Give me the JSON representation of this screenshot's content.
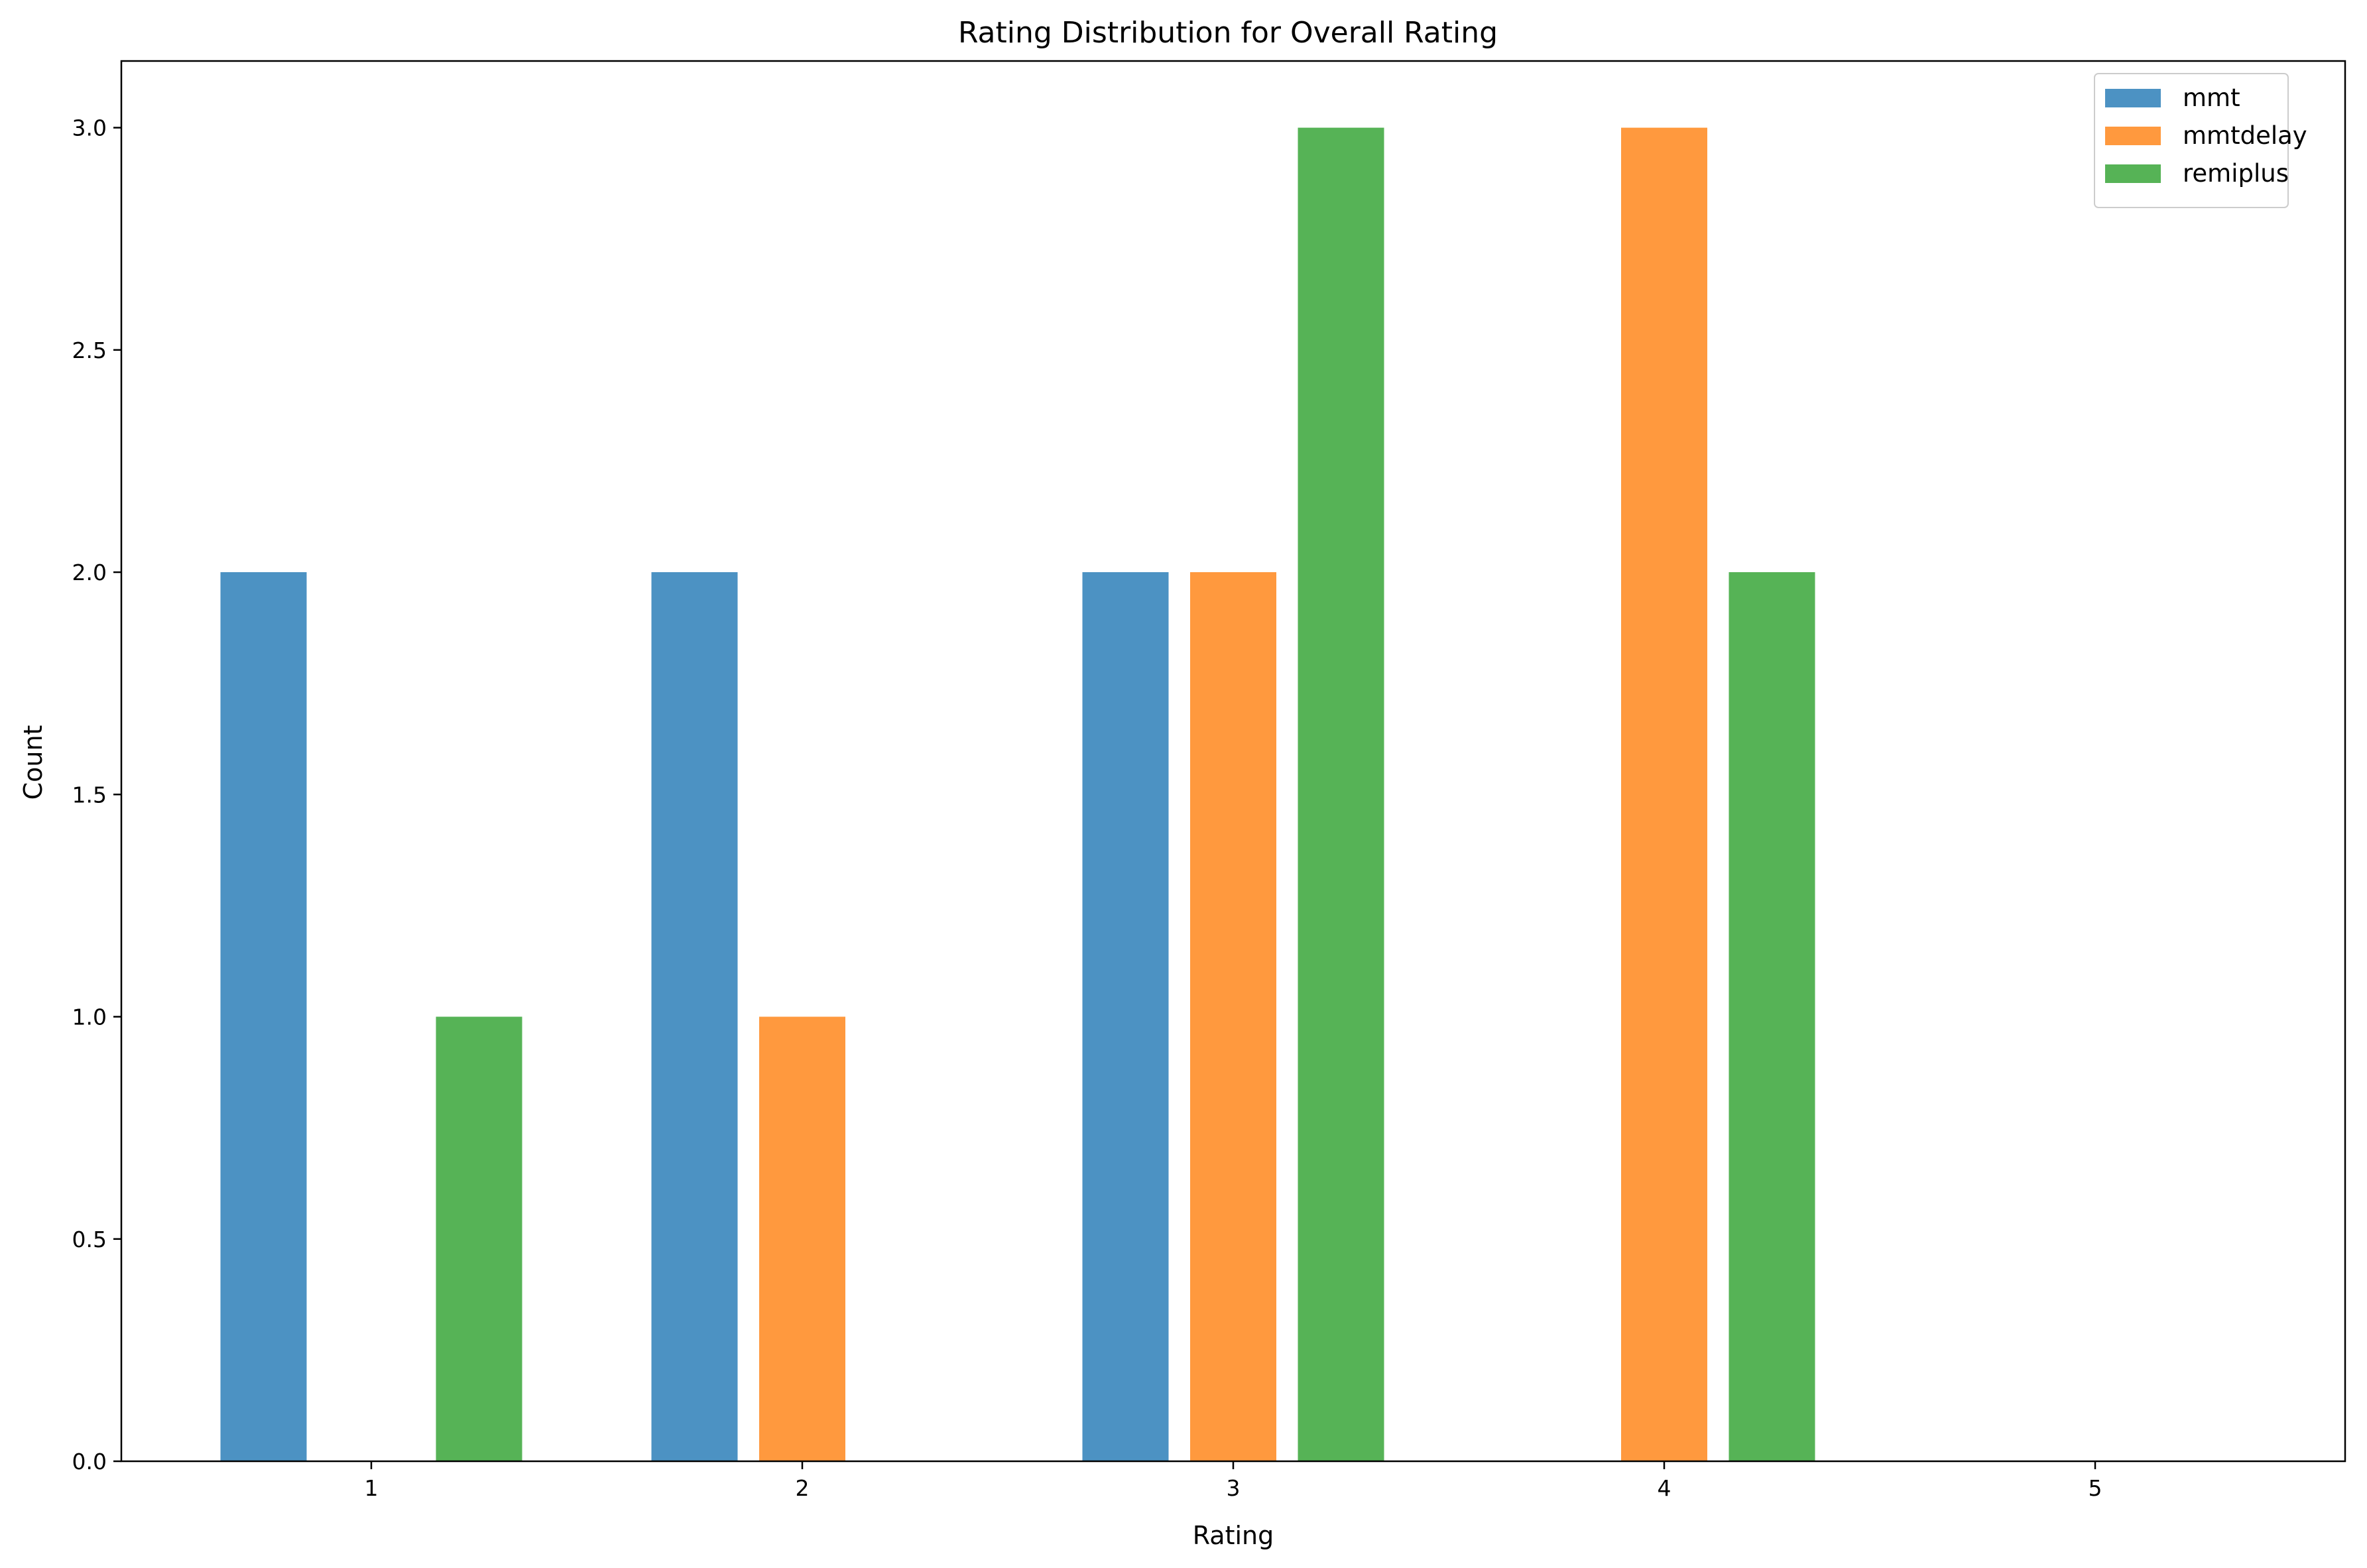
{
  "chart_data": {
    "type": "bar",
    "title": "Rating Distribution for Overall Rating",
    "xlabel": "Rating",
    "ylabel": "Count",
    "categories": [
      "1",
      "2",
      "3",
      "4",
      "5"
    ],
    "x_values": [
      1,
      2,
      3,
      4,
      5
    ],
    "ylim": [
      0,
      3.15
    ],
    "xlim": [
      0.42,
      5.58
    ],
    "yticks": [
      0.0,
      0.5,
      1.0,
      1.5,
      2.0,
      2.5,
      3.0
    ],
    "ytick_labels": [
      "0.0",
      "0.5",
      "1.0",
      "1.5",
      "2.0",
      "2.5",
      "3.0"
    ],
    "bar_width": 0.2,
    "bar_offsets": [
      -0.25,
      0,
      0.25
    ],
    "grid": false,
    "legend_position": "top-right",
    "series": [
      {
        "name": "mmt",
        "color": "#4c92c3",
        "values": [
          2,
          2,
          2,
          0,
          0
        ]
      },
      {
        "name": "mmtdelay",
        "color": "#ff993e",
        "values": [
          0,
          1,
          2,
          3,
          0
        ]
      },
      {
        "name": "remiplus",
        "color": "#56b356",
        "values": [
          1,
          0,
          3,
          2,
          0
        ]
      }
    ]
  }
}
